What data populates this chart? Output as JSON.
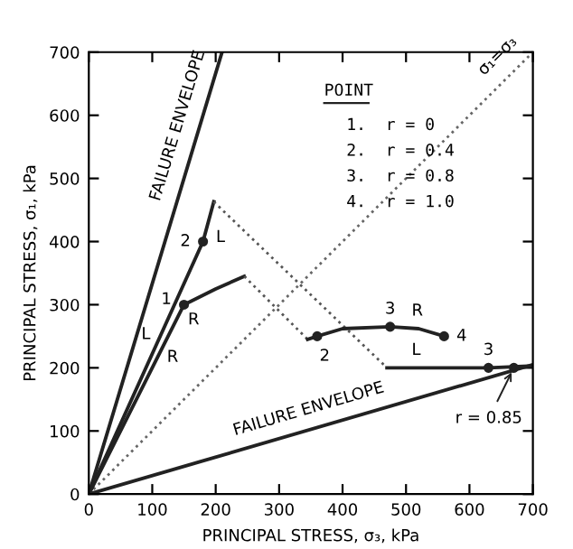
{
  "chart_data": {
    "type": "line",
    "xlabel": "PRINCIPAL STRESS, σ₃, kPa",
    "ylabel": "PRINCIPAL STRESS, σ₁, kPa",
    "xlim": [
      0,
      700
    ],
    "ylim": [
      0,
      700
    ],
    "xticks": [
      0,
      100,
      200,
      300,
      400,
      500,
      600,
      700
    ],
    "yticks": [
      0,
      100,
      200,
      300,
      400,
      500,
      600,
      700
    ],
    "grid": false,
    "series": [
      {
        "name": "FAILURE ENVELOPE",
        "color": "#222222",
        "x": [
          0,
          210
        ],
        "values": [
          0,
          700
        ],
        "line_style": "solid"
      },
      {
        "name": "FAILURE ENVELOPE",
        "color": "#222222",
        "x": [
          0,
          700
        ],
        "values": [
          0,
          205
        ],
        "line_style": "solid"
      },
      {
        "name": "σ₁=σ₃",
        "color": "#666666",
        "x": [
          0,
          700
        ],
        "values": [
          0,
          700
        ],
        "line_style": "dotted"
      },
      {
        "name": "L",
        "color": "#222222",
        "x": [
          0,
          180,
          197
        ],
        "values": [
          0,
          400,
          463
        ],
        "line_style": "solid"
      },
      {
        "color": "#555555",
        "x": [
          197,
          470
        ],
        "values": [
          463,
          200
        ],
        "line_style": "dotted"
      },
      {
        "name": "L",
        "color": "#222222",
        "x": [
          470,
          630,
          700
        ],
        "values": [
          200,
          200,
          203
        ],
        "line_style": "solid"
      },
      {
        "name": "R",
        "color": "#222222",
        "x": [
          0,
          150,
          200,
          245
        ],
        "values": [
          0,
          300,
          325,
          345
        ],
        "line_style": "solid"
      },
      {
        "color": "#555555",
        "x": [
          245,
          345
        ],
        "values": [
          345,
          245
        ],
        "line_style": "dotted"
      },
      {
        "name": "R",
        "color": "#222222",
        "x": [
          345,
          360,
          400,
          475,
          520,
          560
        ],
        "values": [
          245,
          250,
          262,
          265,
          262,
          250
        ],
        "line_style": "solid"
      },
      {
        "type": "scatter",
        "marker": "circle",
        "color": "#222222",
        "x": [
          150,
          180,
          360,
          475,
          560,
          630,
          670
        ],
        "values": [
          300,
          400,
          250,
          265,
          250,
          200,
          200
        ]
      }
    ],
    "annotations": [
      "POINT",
      "1.  r = 0",
      "2.  r = 0.4",
      "3.  r = 0.8",
      "4.  r = 1.0",
      {
        "text": "1",
        "x": 150,
        "y": 300
      },
      {
        "text": "2",
        "x": 180,
        "y": 400
      },
      {
        "text": "2",
        "x": 360,
        "y": 250
      },
      {
        "text": "3",
        "x": 475,
        "y": 265
      },
      {
        "text": "4",
        "x": 560,
        "y": 250
      },
      {
        "text": "3",
        "x": 630,
        "y": 200
      },
      {
        "text": "r = 0.85",
        "x": 670,
        "y": 200
      }
    ]
  }
}
